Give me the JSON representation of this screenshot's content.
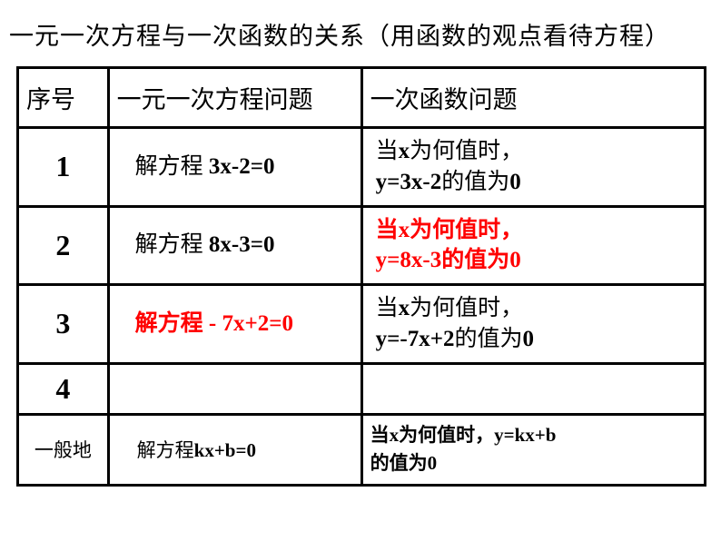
{
  "title": "一元一次方程与一次函数的关系（用函数的观点看待方程）",
  "headers": {
    "col1": "序号",
    "col2": "一元一次方程问题",
    "col3": "一次函数问题"
  },
  "rows": [
    {
      "seq": "1",
      "eq_prefix": "解方程  ",
      "eq_math": "3x-2=0",
      "eq_red": false,
      "func_line1_a": "当",
      "func_line1_b": "x",
      "func_line1_c": "为何值时，",
      "func_line2_a": "y=3x-2",
      "func_line2_b": "的值为",
      "func_line2_c": "0",
      "func_red": false
    },
    {
      "seq": "2",
      "eq_prefix": "解方程   ",
      "eq_math": "8x-3=0",
      "eq_red": false,
      "func_line1_a": "当",
      "func_line1_b": "x",
      "func_line1_c": "为何值时，",
      "func_line2_a": "y=8x-3",
      "func_line2_b": "的值为",
      "func_line2_c": "0",
      "func_red": true
    },
    {
      "seq": "3",
      "eq_prefix": "解方程 ",
      "eq_math": "- 7x+2=0",
      "eq_red": true,
      "func_line1_a": "当",
      "func_line1_b": "x",
      "func_line1_c": "为何值时，",
      "func_line2_a": "y=-7x+2",
      "func_line2_b": "的值为",
      "func_line2_c": "0",
      "func_red": false
    }
  ],
  "row4_seq": "4",
  "general": {
    "label": "一般地",
    "eq_prefix": "解方程",
    "eq_math": "kx+b=0",
    "func_a": "当",
    "func_b": "x",
    "func_c": "为何值时，",
    "func_d": "y=kx+b",
    "func_e": "的值为",
    "func_f": "0"
  },
  "colors": {
    "text": "#000000",
    "red": "#ff0000",
    "border": "#000000",
    "background": "#ffffff"
  },
  "fonts": {
    "title_size": 27,
    "header_size": 27,
    "seq_size": 32,
    "cell_size": 25,
    "general_size": 21
  }
}
